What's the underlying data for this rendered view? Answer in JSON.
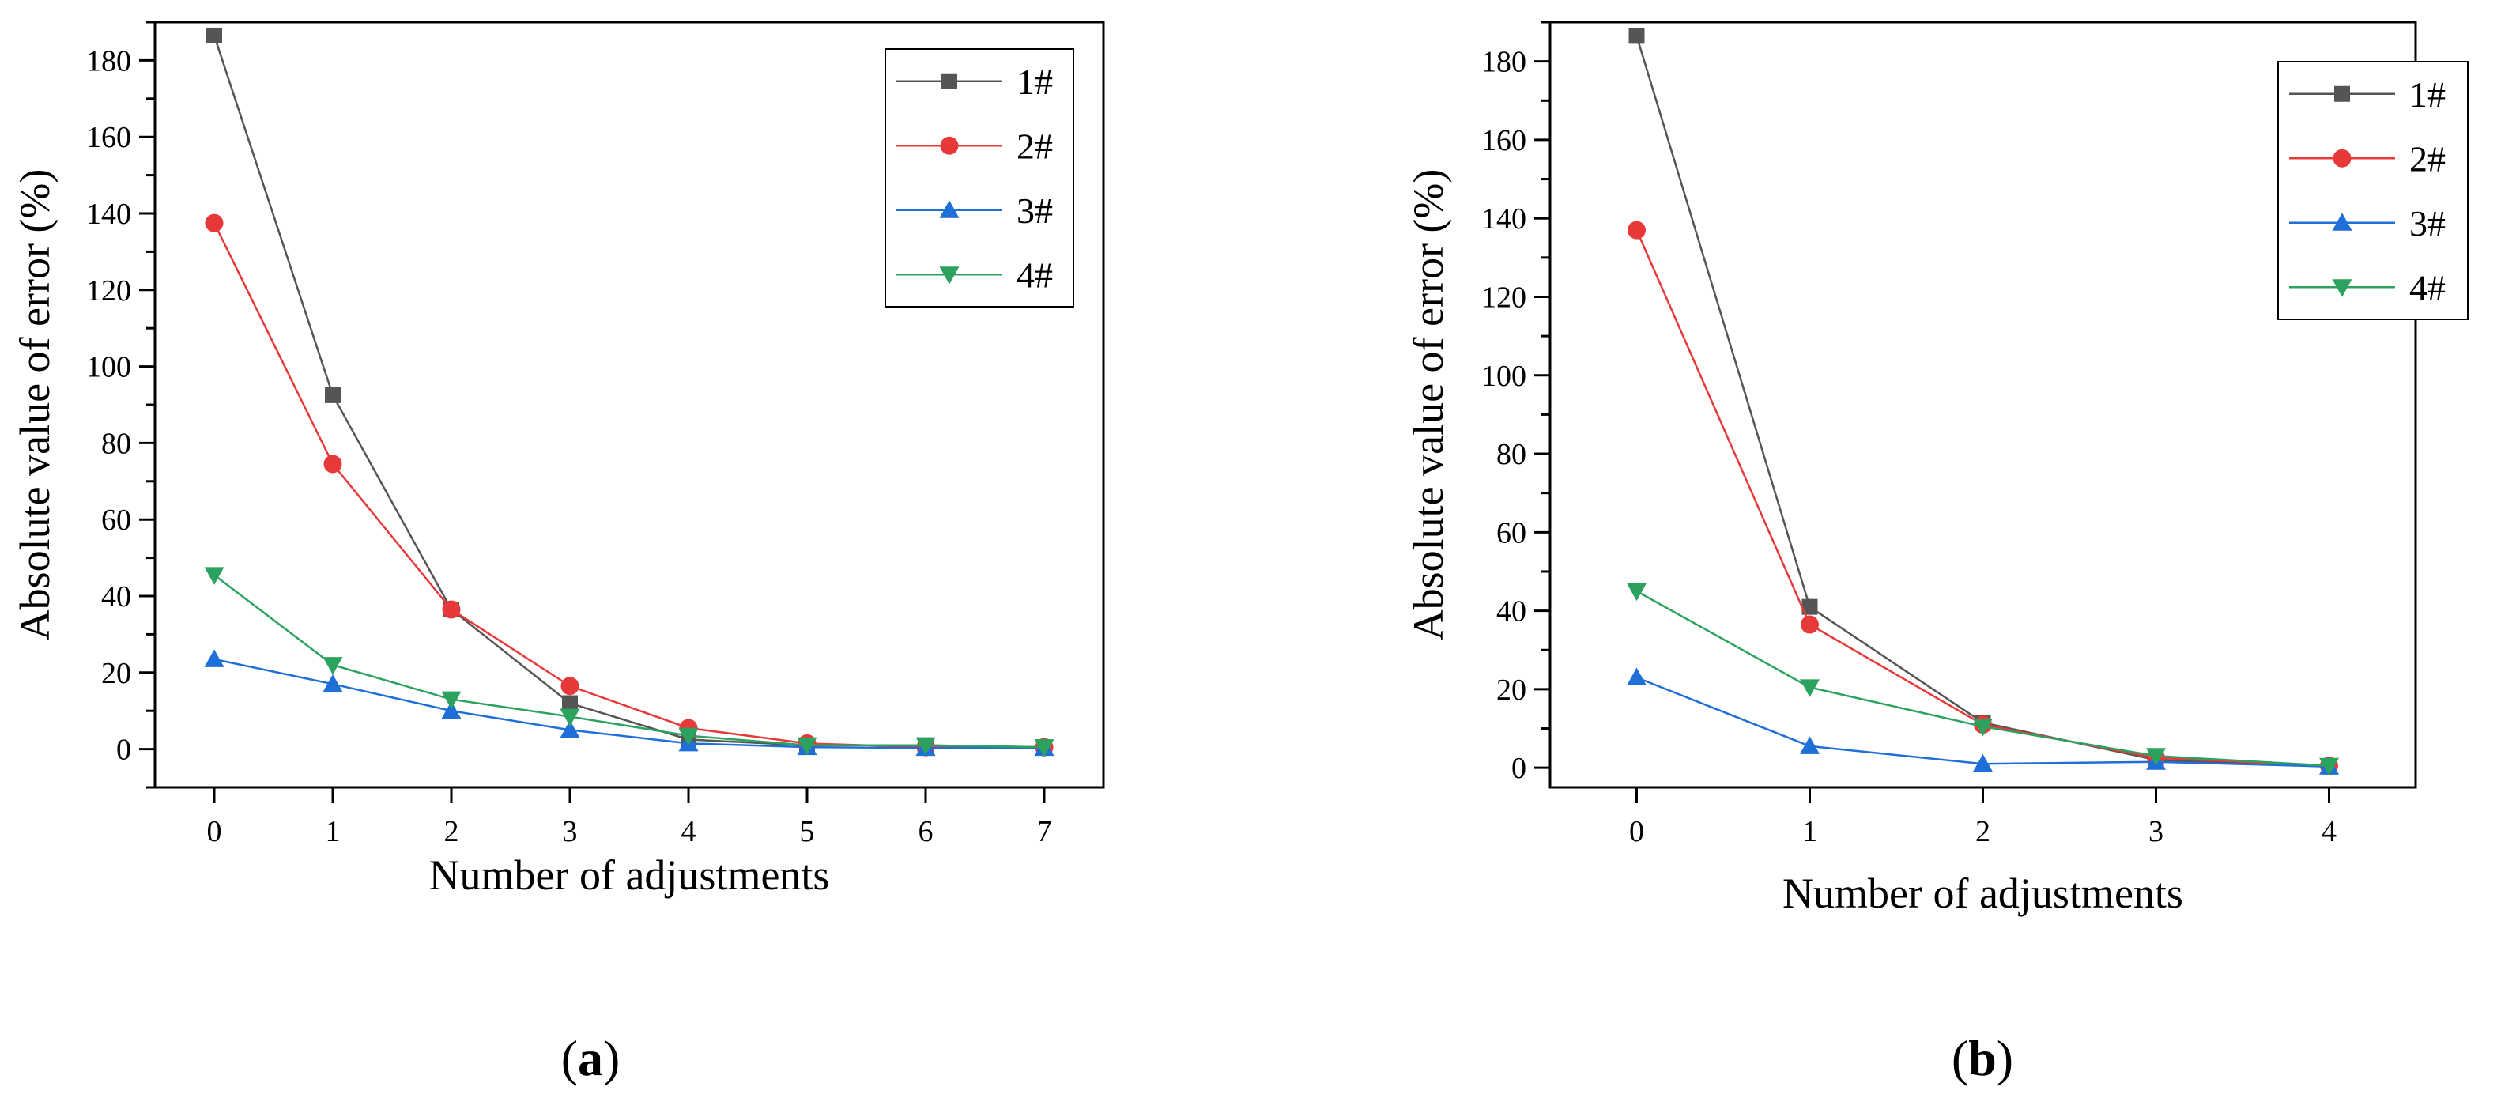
{
  "chart_data": [
    {
      "type": "line",
      "panel_label": "a",
      "title": "",
      "xlabel": "Number of adjustments",
      "ylabel": "Absolute value of error (%)",
      "x": [
        0,
        1,
        2,
        3,
        4,
        5,
        6,
        7
      ],
      "xlim": [
        -0.5,
        7.5
      ],
      "ylim": [
        -10,
        190
      ],
      "xticks": [
        0,
        1,
        2,
        3,
        4,
        5,
        6,
        7
      ],
      "yticks": [
        0,
        20,
        40,
        60,
        80,
        100,
        120,
        140,
        160,
        180
      ],
      "grid": false,
      "legend_position": "top-right",
      "series": [
        {
          "name": "1#",
          "color": "#555555",
          "marker": "square",
          "values": [
            186.5,
            92.5,
            36.5,
            12.0,
            2.5,
            1.0,
            1.0,
            0.5
          ]
        },
        {
          "name": "2#",
          "color": "#e8393a",
          "marker": "circle",
          "values": [
            137.5,
            74.5,
            36.5,
            16.5,
            5.5,
            1.5,
            0.5,
            0.5
          ]
        },
        {
          "name": "3#",
          "color": "#1f6fd8",
          "marker": "triangle-up",
          "values": [
            23.5,
            17.0,
            10.0,
            5.0,
            1.5,
            0.5,
            0.3,
            0.3
          ]
        },
        {
          "name": "4#",
          "color": "#2ca25f",
          "marker": "triangle-down",
          "values": [
            45.5,
            22.0,
            13.0,
            8.5,
            3.5,
            1.0,
            1.0,
            0.5
          ]
        }
      ]
    },
    {
      "type": "line",
      "panel_label": "b",
      "title": "",
      "xlabel": "Number of adjustments",
      "ylabel": "Absolute value of error (%)",
      "x": [
        0,
        1,
        2,
        3,
        4
      ],
      "xlim": [
        -0.5,
        4.5
      ],
      "ylim": [
        -5,
        190
      ],
      "xticks": [
        0,
        1,
        2,
        3,
        4
      ],
      "yticks": [
        0,
        20,
        40,
        60,
        80,
        100,
        120,
        140,
        160,
        180
      ],
      "grid": false,
      "legend_position": "top-right",
      "series": [
        {
          "name": "1#",
          "color": "#555555",
          "marker": "square",
          "values": [
            186.5,
            41.0,
            11.5,
            2.0,
            0.3
          ]
        },
        {
          "name": "2#",
          "color": "#e8393a",
          "marker": "circle",
          "values": [
            137.0,
            36.5,
            11.0,
            2.5,
            0.5
          ]
        },
        {
          "name": "3#",
          "color": "#1f6fd8",
          "marker": "triangle-up",
          "values": [
            23.0,
            5.5,
            1.0,
            1.5,
            0.3
          ]
        },
        {
          "name": "4#",
          "color": "#2ca25f",
          "marker": "triangle-down",
          "values": [
            45.0,
            20.5,
            10.5,
            3.0,
            0.5
          ]
        }
      ]
    }
  ]
}
